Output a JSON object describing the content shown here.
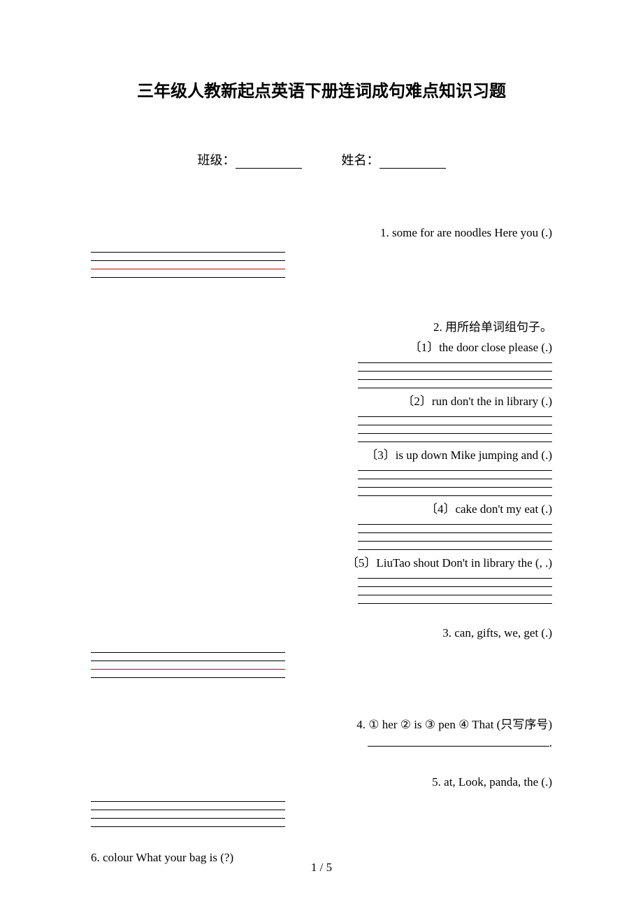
{
  "title": "三年级人教新起点英语下册连词成句难点知识习题",
  "class_label": "班级：",
  "name_label": "姓名：",
  "q1": "1. some for  are  noodles  Here  you (.)",
  "q2": {
    "header": "2. 用所给单词组句子。",
    "s1": "〔1〕the  door  close  please (.)",
    "s2": "〔2〕run  don't  the  in  library (.)",
    "s3": "〔3〕is  up  down  Mike  jumping  and (.)",
    "s4": "〔4〕cake don't   my   eat (.)",
    "s5": "〔5〕LiuTao shout  Don't in library the (, .)"
  },
  "q3": "3. can,    gifts,    we,    get (.)",
  "q4": {
    "text": "4. ① her  ② is  ③ pen  ④ That (只写序号)",
    "period": "."
  },
  "q5": "5. at, Look, panda, the (.)",
  "q6": "6. colour  What  your  bag  is (?)",
  "page_number": "1 / 5",
  "colors": {
    "text": "#000000",
    "red_line": "#cc0000",
    "background": "#ffffff"
  }
}
